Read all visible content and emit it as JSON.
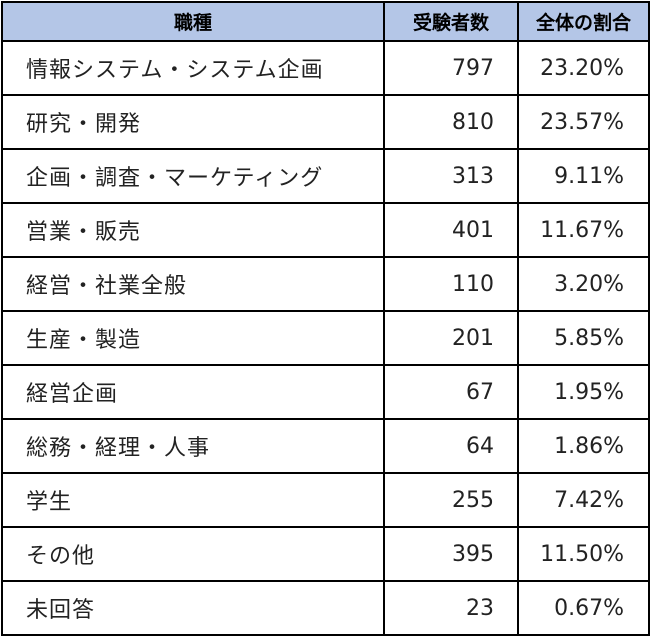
{
  "table": {
    "headers": [
      "職種",
      "受験者数",
      "全体の割合"
    ],
    "rows": [
      [
        "情報システム・システム企画",
        "797",
        "23.20%"
      ],
      [
        "研究・開発",
        "810",
        "23.57%"
      ],
      [
        "企画・調査・マーケティング",
        "313",
        "9.11%"
      ],
      [
        "営業・販売",
        "401",
        "11.67%"
      ],
      [
        "経営・社業全般",
        "110",
        "3.20%"
      ],
      [
        "生産・製造",
        "201",
        "5.85%"
      ],
      [
        "経営企画",
        "67",
        "1.95%"
      ],
      [
        "総務・経理・人事",
        "64",
        "1.86%"
      ],
      [
        "学生",
        "255",
        "7.42%"
      ],
      [
        "その他",
        "395",
        "11.50%"
      ],
      [
        "未回答",
        "23",
        "0.67%"
      ]
    ],
    "header_bg": "#b4c6e7"
  }
}
